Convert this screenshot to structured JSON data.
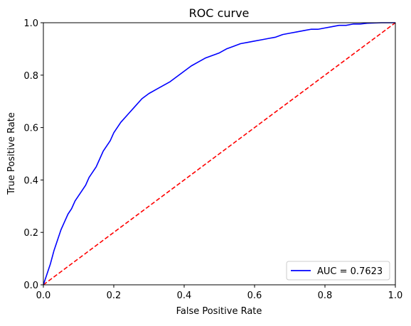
{
  "chart_data": {
    "type": "line",
    "title": "ROC curve",
    "xlabel": "False Positive Rate",
    "ylabel": "True Positive Rate",
    "xlim": [
      0.0,
      1.0
    ],
    "ylim": [
      0.0,
      1.0
    ],
    "xticks": [
      0.0,
      0.2,
      0.4,
      0.6,
      0.8,
      1.0
    ],
    "yticks": [
      0.0,
      0.2,
      0.4,
      0.6,
      0.8,
      1.0
    ],
    "xtick_labels": [
      "0.0",
      "0.2",
      "0.4",
      "0.6",
      "0.8",
      "1.0"
    ],
    "ytick_labels": [
      "0.0",
      "0.2",
      "0.4",
      "0.6",
      "0.8",
      "1.0"
    ],
    "grid": false,
    "legend_position": "lower right",
    "series": [
      {
        "name": "AUC = 0.7623",
        "color": "#0000ff",
        "style": "solid",
        "x": [
          0.0,
          0.005,
          0.01,
          0.02,
          0.03,
          0.04,
          0.05,
          0.06,
          0.07,
          0.08,
          0.09,
          0.1,
          0.11,
          0.12,
          0.13,
          0.14,
          0.15,
          0.16,
          0.17,
          0.18,
          0.19,
          0.2,
          0.22,
          0.24,
          0.26,
          0.28,
          0.3,
          0.32,
          0.34,
          0.36,
          0.38,
          0.4,
          0.42,
          0.44,
          0.46,
          0.48,
          0.5,
          0.52,
          0.54,
          0.56,
          0.58,
          0.6,
          0.62,
          0.64,
          0.66,
          0.68,
          0.7,
          0.72,
          0.74,
          0.76,
          0.78,
          0.8,
          0.82,
          0.84,
          0.86,
          0.88,
          0.9,
          0.92,
          0.94,
          0.96,
          0.98,
          1.0
        ],
        "y": [
          0.0,
          0.02,
          0.04,
          0.08,
          0.13,
          0.17,
          0.21,
          0.24,
          0.27,
          0.29,
          0.32,
          0.34,
          0.36,
          0.38,
          0.41,
          0.43,
          0.45,
          0.48,
          0.51,
          0.53,
          0.55,
          0.58,
          0.62,
          0.65,
          0.68,
          0.71,
          0.73,
          0.745,
          0.76,
          0.775,
          0.795,
          0.815,
          0.835,
          0.85,
          0.865,
          0.875,
          0.885,
          0.9,
          0.91,
          0.92,
          0.925,
          0.93,
          0.935,
          0.94,
          0.945,
          0.955,
          0.96,
          0.965,
          0.97,
          0.975,
          0.975,
          0.98,
          0.985,
          0.99,
          0.99,
          0.995,
          0.995,
          0.998,
          0.999,
          1.0,
          1.0,
          1.0
        ]
      },
      {
        "name": "",
        "color": "#ff0000",
        "style": "dashed",
        "x": [
          0.0,
          1.0
        ],
        "y": [
          0.0,
          1.0
        ]
      }
    ]
  }
}
